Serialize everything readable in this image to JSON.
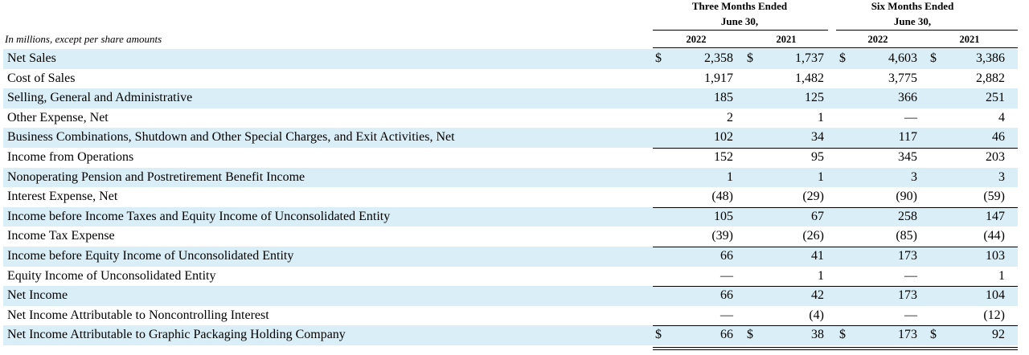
{
  "headers": {
    "three_months": "Three Months Ended\nJune 30,",
    "three_line1": "Three Months Ended",
    "three_line2": "June 30,",
    "six_line1": "Six Months Ended",
    "six_line2": "June 30,",
    "years": [
      "2022",
      "2021",
      "2022",
      "2021"
    ],
    "units_note": "In millions, except per share amounts"
  },
  "rows": [
    {
      "label": "Net Sales",
      "cur": [
        "$",
        "$",
        "$",
        "$"
      ],
      "values": [
        "2,358",
        "1,737",
        "4,603",
        "3,386"
      ],
      "shade": true
    },
    {
      "label": "Cost of Sales",
      "values": [
        "1,917",
        "1,482",
        "3,775",
        "2,882"
      ],
      "shade": false
    },
    {
      "label": "Selling, General and Administrative",
      "values": [
        "185",
        "125",
        "366",
        "251"
      ],
      "shade": true
    },
    {
      "label": "Other Expense, Net",
      "values": [
        "2",
        "1",
        "—",
        "4"
      ],
      "shade": false
    },
    {
      "label": "Business Combinations, Shutdown and Other Special Charges, and Exit Activities, Net",
      "values": [
        "102",
        "34",
        "117",
        "46"
      ],
      "shade": true
    },
    {
      "label": "Income from Operations",
      "values": [
        "152",
        "95",
        "345",
        "203"
      ],
      "shade": false,
      "topline": true
    },
    {
      "label": "Nonoperating Pension and Postretirement Benefit Income",
      "values": [
        "1",
        "1",
        "3",
        "3"
      ],
      "shade": true
    },
    {
      "label": "Interest Expense, Net",
      "values": [
        "(48)",
        "(29)",
        "(90)",
        "(59)"
      ],
      "shade": false
    },
    {
      "label": "Income before Income Taxes and Equity Income of Unconsolidated Entity",
      "values": [
        "105",
        "67",
        "258",
        "147"
      ],
      "shade": true,
      "topline": true
    },
    {
      "label": "Income Tax Expense",
      "values": [
        "(39)",
        "(26)",
        "(85)",
        "(44)"
      ],
      "shade": false
    },
    {
      "label": "Income before Equity Income of Unconsolidated Entity",
      "values": [
        "66",
        "41",
        "173",
        "103"
      ],
      "shade": true,
      "topline": true
    },
    {
      "label": "Equity Income of Unconsolidated Entity",
      "values": [
        "—",
        "1",
        "—",
        "1"
      ],
      "shade": false
    },
    {
      "label": "Net Income",
      "values": [
        "66",
        "42",
        "173",
        "104"
      ],
      "shade": true,
      "topline": true
    },
    {
      "label": "Net Income Attributable to Noncontrolling Interest",
      "values": [
        "—",
        "(4)",
        "—",
        "(12)"
      ],
      "shade": false
    },
    {
      "label": "Net Income Attributable to Graphic Packaging Holding Company",
      "cur": [
        "$",
        "$",
        "$",
        "$"
      ],
      "values": [
        "66",
        "38",
        "173",
        "92"
      ],
      "shade": true,
      "topline": true
    }
  ],
  "colors": {
    "row_shade": "#daeef7"
  }
}
